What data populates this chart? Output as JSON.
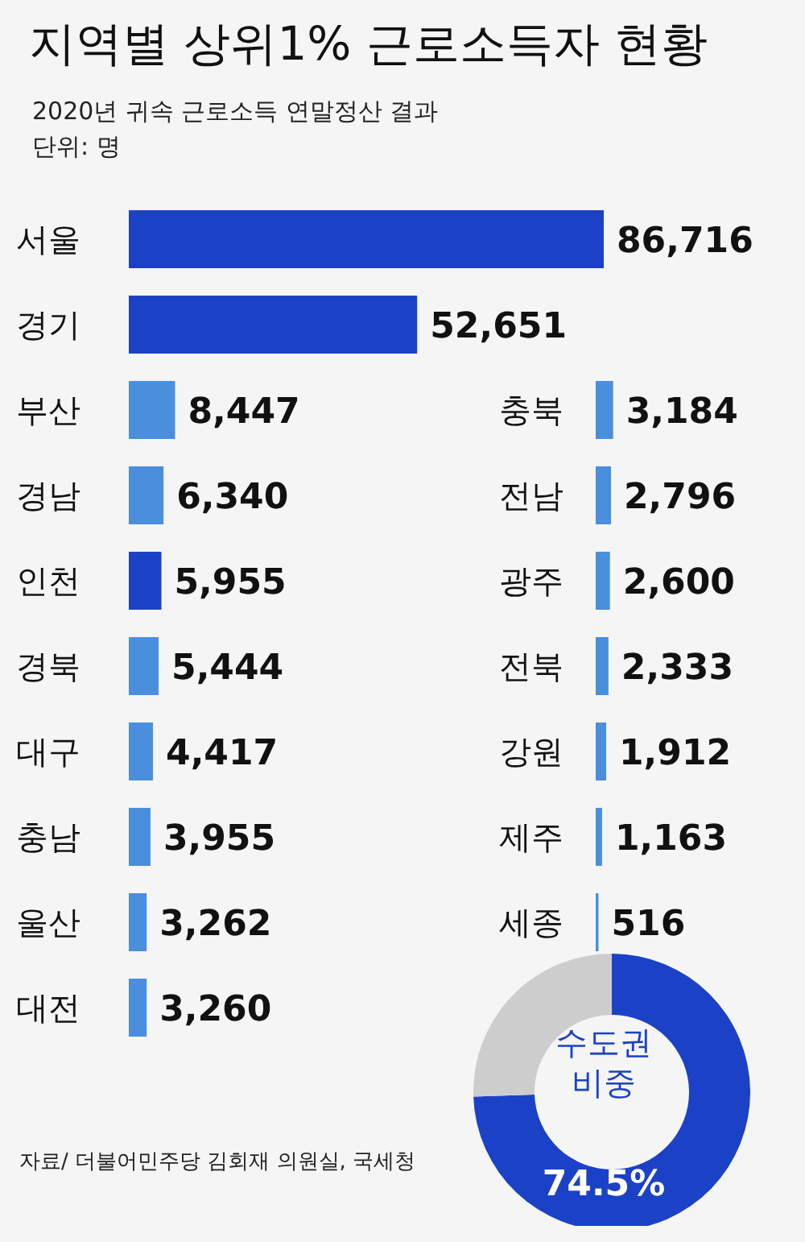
{
  "chart_data": [
    {
      "type": "bar",
      "orientation": "horizontal",
      "title": "지역별 상위1% 근로소득자 현황",
      "subtitle": "2020년 귀속 근로소득 연말정산 결과",
      "annotations": [
        "단위: 명",
        "자료/ 더불어민주당 김회재 의원실, 국세청"
      ],
      "categories": [
        "서울",
        "경기",
        "부산",
        "경남",
        "인천",
        "경북",
        "대구",
        "충남",
        "울산",
        "대전"
      ],
      "values": [
        86716,
        52651,
        8447,
        6340,
        5955,
        5444,
        4417,
        3955,
        3262,
        3260
      ],
      "value_labels": [
        "86,716",
        "52,651",
        "8,447",
        "6,340",
        "5,955",
        "5,444",
        "4,417",
        "3,955",
        "3,262",
        "3,260"
      ],
      "colors": [
        "#1b42c6",
        "#1b42c6",
        "#4a8ede",
        "#4a8ede",
        "#1b42c6",
        "#4a8ede",
        "#4a8ede",
        "#4a8ede",
        "#4a8ede",
        "#4a8ede"
      ]
    },
    {
      "type": "bar",
      "orientation": "horizontal",
      "categories": [
        "충북",
        "전남",
        "광주",
        "전북",
        "강원",
        "제주",
        "세종"
      ],
      "values": [
        3184,
        2796,
        2600,
        2333,
        1912,
        1163,
        516
      ],
      "value_labels": [
        "3,184",
        "2,796",
        "2,600",
        "2,333",
        "1,912",
        "1,163",
        "516"
      ],
      "colors": [
        "#4a8ede",
        "#4a8ede",
        "#4a8ede",
        "#4a8ede",
        "#4a8ede",
        "#4a8ede",
        "#4a8ede"
      ]
    },
    {
      "type": "donut",
      "title": "수도권 비중",
      "categories": [
        null,
        null
      ],
      "values": [
        74.5,
        25.5
      ],
      "colors": [
        "#1b42c6",
        "#cdcdcd"
      ],
      "value_labels": [
        "74.5%",
        null
      ]
    }
  ]
}
